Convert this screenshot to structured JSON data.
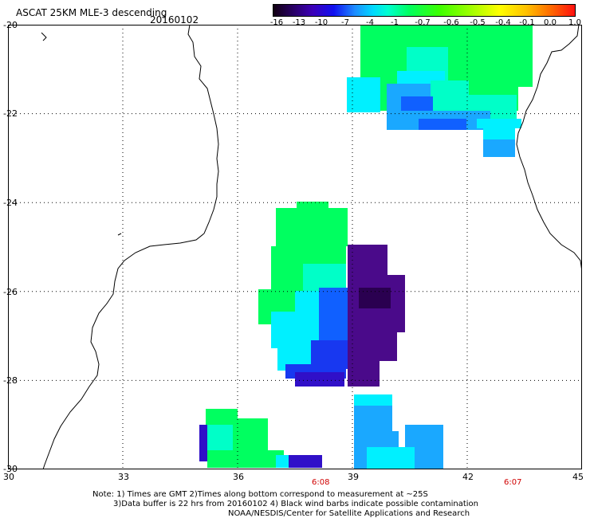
{
  "header": {
    "title": "ASCAT 25KM MLE-3 descending",
    "date": "20160102"
  },
  "color_scale": {
    "labels": [
      "-16",
      "-13",
      "-10",
      "-7",
      "-4",
      "-1",
      "-0.7",
      "-0.6",
      "-0.5",
      "-0.4",
      "-0.1",
      "0.0",
      "1.0"
    ],
    "colors": [
      "#120012",
      "#2a006a",
      "#3c00b8",
      "#1010f0",
      "#1d8cff",
      "#00d8ff",
      "#00ffd0",
      "#00ff60",
      "#3cff00",
      "#9bff00",
      "#ffff00",
      "#ffc000",
      "#ff1010"
    ]
  },
  "map": {
    "lon_labels": [
      "30",
      "33",
      "36",
      "39",
      "42",
      "45"
    ],
    "lat_labels": [
      "-20",
      "-22",
      "-24",
      "-26",
      "-28",
      "-30"
    ],
    "time_labels": [
      "6:08",
      "6:07"
    ],
    "lon_range": [
      30,
      45
    ],
    "lat_range": [
      -30,
      -20
    ],
    "colors": {
      "green": "#00ff60",
      "mint": "#00ffc8",
      "cyan": "#00f0ff",
      "sky": "#1aa8ff",
      "blue": "#1060ff",
      "royal": "#1838f0",
      "indigo": "#3010c8",
      "purple": "#4a0a8a",
      "dark": "#2a0050"
    }
  },
  "notes": {
    "line1": "Note: 1) Times are GMT 2)Times along bottom correspond to measurement at ~25S",
    "line2": "3)Data buffer is 22 hrs from 20160102 4) Black wind barbs indicate possible contamination",
    "line3": "NOAA/NESDIS/Center for Satellite Applications and Research"
  }
}
